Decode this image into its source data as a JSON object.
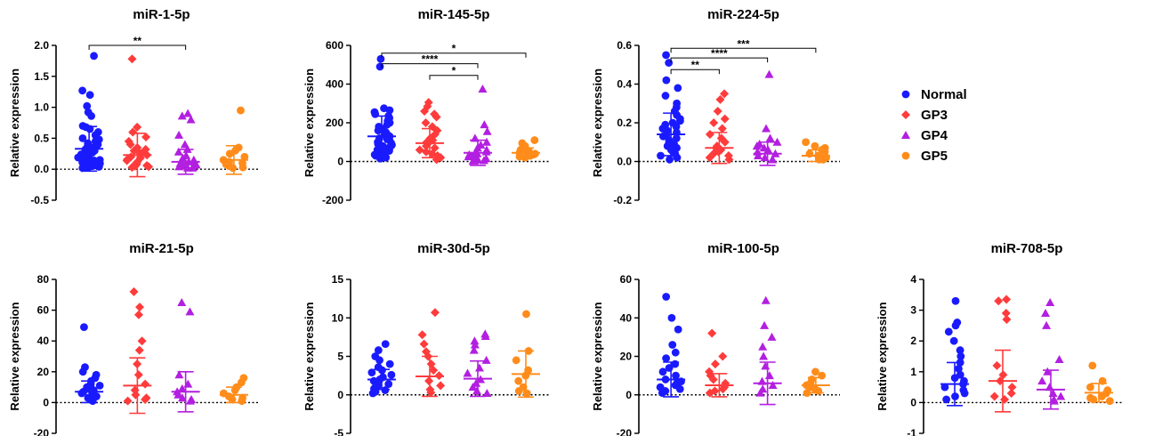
{
  "legend": [
    {
      "label": "Normal",
      "color": "#1a1aff",
      "marker": "circle"
    },
    {
      "label": "GP3",
      "color": "#ff3b3b",
      "marker": "diamond"
    },
    {
      "label": "GP4",
      "color": "#b31fe0",
      "marker": "triangle"
    },
    {
      "label": "GP5",
      "color": "#ff8c1a",
      "marker": "circle"
    }
  ],
  "chart_data": [
    {
      "type": "scatter",
      "title": "miR-1-5p",
      "ylabel": "Relative expression",
      "ylim": [
        -0.5,
        2.0
      ],
      "yticks": [
        "-0.5",
        "0.0",
        "0.5",
        "1.0",
        "1.5",
        "2.0"
      ],
      "reference_line": 0,
      "groups": [
        {
          "name": "Normal",
          "mean": 0.33,
          "sd": 0.36,
          "values": [
            1.83,
            1.27,
            1.2,
            1.02,
            0.92,
            0.86,
            0.7,
            0.68,
            0.65,
            0.6,
            0.55,
            0.5,
            0.48,
            0.45,
            0.42,
            0.4,
            0.38,
            0.35,
            0.32,
            0.3,
            0.28,
            0.27,
            0.25,
            0.24,
            0.22,
            0.2,
            0.19,
            0.18,
            0.16,
            0.15,
            0.14,
            0.13,
            0.12,
            0.11,
            0.1,
            0.09,
            0.08,
            0.07,
            0.06,
            0.05,
            0.04,
            0.03,
            0.02
          ]
        },
        {
          "name": "GP3",
          "mean": 0.23,
          "sd": 0.35,
          "values": [
            1.78,
            0.68,
            0.6,
            0.52,
            0.45,
            0.4,
            0.35,
            0.32,
            0.3,
            0.28,
            0.25,
            0.23,
            0.2,
            0.18,
            0.16,
            0.14,
            0.12,
            0.1,
            0.08,
            0.06,
            0.05,
            0.04,
            0.03
          ]
        },
        {
          "name": "GP4",
          "mean": 0.12,
          "sd": 0.2,
          "values": [
            0.9,
            0.86,
            0.8,
            0.55,
            0.4,
            0.32,
            0.28,
            0.22,
            0.18,
            0.15,
            0.12,
            0.1,
            0.08,
            0.07,
            0.06,
            0.05,
            0.04,
            0.03,
            0.02,
            0.02
          ]
        },
        {
          "name": "GP5",
          "mean": 0.15,
          "sd": 0.23,
          "values": [
            0.95,
            0.35,
            0.3,
            0.25,
            0.2,
            0.15,
            0.12,
            0.1,
            0.08,
            0.05,
            0.03,
            0.02
          ]
        }
      ],
      "significance": [
        {
          "from": 0,
          "to": 2,
          "y": 2.0,
          "label": "**"
        }
      ]
    },
    {
      "type": "scatter",
      "title": "miR-145-5p",
      "ylabel": "Relative expression",
      "ylim": [
        -200,
        600
      ],
      "yticks": [
        "-200",
        "0",
        "200",
        "400",
        "600"
      ],
      "reference_line": 0,
      "groups": [
        {
          "name": "Normal",
          "mean": 130,
          "sd": 105,
          "values": [
            530,
            490,
            275,
            265,
            255,
            245,
            235,
            225,
            210,
            200,
            190,
            180,
            170,
            160,
            150,
            145,
            140,
            135,
            130,
            120,
            115,
            110,
            100,
            95,
            90,
            85,
            80,
            75,
            70,
            65,
            60,
            55,
            50,
            45,
            40,
            35,
            30,
            25,
            20,
            15
          ]
        },
        {
          "name": "GP3",
          "mean": 95,
          "sd": 75,
          "values": [
            305,
            285,
            260,
            245,
            230,
            200,
            180,
            160,
            140,
            120,
            110,
            100,
            90,
            80,
            70,
            60,
            50,
            40,
            30,
            20,
            10
          ]
        },
        {
          "name": "GP4",
          "mean": 45,
          "sd": 65,
          "values": [
            375,
            190,
            155,
            120,
            100,
            85,
            70,
            60,
            50,
            45,
            40,
            35,
            30,
            25,
            20,
            15,
            10,
            8,
            5,
            3
          ]
        },
        {
          "name": "GP5",
          "mean": 45,
          "sd": 25,
          "values": [
            110,
            95,
            80,
            70,
            60,
            55,
            50,
            45,
            40,
            35,
            30,
            25,
            20
          ]
        }
      ],
      "significance": [
        {
          "from": 0,
          "to": 3,
          "y": 560,
          "label": "*"
        },
        {
          "from": 0,
          "to": 2,
          "y": 505,
          "label": "****"
        },
        {
          "from": 1,
          "to": 2,
          "y": 445,
          "label": "*"
        }
      ]
    },
    {
      "type": "scatter",
      "title": "miR-224-5p",
      "ylabel": "Relative expression",
      "ylim": [
        -0.2,
        0.6
      ],
      "yticks": [
        "-0.2",
        "0.0",
        "0.2",
        "0.4",
        "0.6"
      ],
      "reference_line": 0,
      "groups": [
        {
          "name": "Normal",
          "mean": 0.14,
          "sd": 0.11,
          "values": [
            0.55,
            0.51,
            0.42,
            0.38,
            0.34,
            0.3,
            0.28,
            0.26,
            0.24,
            0.22,
            0.21,
            0.2,
            0.19,
            0.18,
            0.17,
            0.16,
            0.15,
            0.14,
            0.13,
            0.12,
            0.11,
            0.1,
            0.09,
            0.08,
            0.07,
            0.06,
            0.05,
            0.04,
            0.03,
            0.02,
            0.01
          ]
        },
        {
          "name": "GP3",
          "mean": 0.07,
          "sd": 0.08,
          "values": [
            0.35,
            0.32,
            0.26,
            0.22,
            0.2,
            0.17,
            0.14,
            0.12,
            0.1,
            0.08,
            0.07,
            0.06,
            0.05,
            0.04,
            0.03,
            0.02,
            0.01
          ]
        },
        {
          "name": "GP4",
          "mean": 0.04,
          "sd": 0.06,
          "values": [
            0.45,
            0.17,
            0.12,
            0.1,
            0.09,
            0.08,
            0.07,
            0.06,
            0.05,
            0.04,
            0.03,
            0.02,
            0.01,
            0.01
          ]
        },
        {
          "name": "GP5",
          "mean": 0.03,
          "sd": 0.03,
          "values": [
            0.1,
            0.08,
            0.07,
            0.06,
            0.05,
            0.04,
            0.03,
            0.02,
            0.01,
            0.01
          ]
        }
      ],
      "significance": [
        {
          "from": 0,
          "to": 3,
          "y": 0.585,
          "label": "***"
        },
        {
          "from": 0,
          "to": 2,
          "y": 0.535,
          "label": "****"
        },
        {
          "from": 0,
          "to": 1,
          "y": 0.475,
          "label": "**"
        }
      ]
    },
    {
      "type": "scatter",
      "title": "miR-21-5p",
      "ylabel": "Relative expression",
      "ylim": [
        -20,
        80
      ],
      "yticks": [
        "-20",
        "0",
        "20",
        "40",
        "60",
        "80"
      ],
      "reference_line": 0,
      "groups": [
        {
          "name": "Normal",
          "mean": 7,
          "sd": 7,
          "values": [
            49,
            23,
            20,
            18,
            16,
            14,
            12,
            11,
            10,
            9,
            8,
            7,
            6,
            5,
            4,
            3,
            2,
            1
          ]
        },
        {
          "name": "GP3",
          "mean": 11,
          "sd": 18,
          "values": [
            72,
            62,
            57,
            40,
            34,
            25,
            18,
            12,
            8,
            5,
            3,
            2,
            1
          ]
        },
        {
          "name": "GP4",
          "mean": 7,
          "sd": 13,
          "values": [
            65,
            59,
            18,
            12,
            9,
            7,
            5,
            3,
            2,
            1
          ]
        },
        {
          "name": "GP5",
          "mean": 5,
          "sd": 5,
          "values": [
            16,
            13,
            10,
            8,
            6,
            4,
            3,
            2,
            1
          ]
        }
      ],
      "significance": []
    },
    {
      "type": "scatter",
      "title": "miR-30d-5p",
      "ylabel": "Relative expression",
      "ylim": [
        -5,
        15
      ],
      "yticks": [
        "-5",
        "0",
        "5",
        "10",
        "15"
      ],
      "reference_line": 0,
      "groups": [
        {
          "name": "Normal",
          "mean": 2.0,
          "sd": 1.3,
          "values": [
            6.6,
            5.8,
            5.0,
            4.5,
            4.0,
            3.6,
            3.2,
            2.9,
            2.6,
            2.3,
            2.0,
            1.8,
            1.6,
            1.4,
            1.2,
            1.0,
            0.8,
            0.6,
            0.4,
            0.2
          ]
        },
        {
          "name": "GP3",
          "mean": 2.4,
          "sd": 2.6,
          "values": [
            10.7,
            7.8,
            6.6,
            5.6,
            5.0,
            4.0,
            3.2,
            2.5,
            1.8,
            1.2,
            0.7,
            0.3
          ]
        },
        {
          "name": "GP4",
          "mean": 2.1,
          "sd": 2.3,
          "values": [
            7.9,
            7.6,
            7.0,
            6.5,
            5.8,
            4.5,
            3.5,
            2.8,
            2.0,
            1.5,
            1.0,
            0.5,
            0.2
          ]
        },
        {
          "name": "GP5",
          "mean": 2.7,
          "sd": 3.0,
          "values": [
            10.5,
            5.7,
            4.5,
            3.2,
            2.5,
            1.8,
            1.0,
            0.5,
            0.2
          ]
        }
      ],
      "significance": []
    },
    {
      "type": "scatter",
      "title": "miR-100-5p",
      "ylabel": "Relative expression",
      "ylim": [
        -20,
        60
      ],
      "yticks": [
        "-20",
        "0",
        "20",
        "40",
        "60"
      ],
      "reference_line": 0,
      "groups": [
        {
          "name": "Normal",
          "mean": 8,
          "sd": 9,
          "values": [
            51,
            40,
            34,
            26,
            22,
            19,
            16,
            14,
            12,
            10,
            8,
            7,
            6,
            5,
            4,
            3,
            2,
            1
          ]
        },
        {
          "name": "GP3",
          "mean": 5,
          "sd": 6,
          "values": [
            32,
            20,
            16,
            12,
            10,
            8,
            6,
            4,
            3,
            2,
            1
          ]
        },
        {
          "name": "GP4",
          "mean": 6,
          "sd": 11,
          "values": [
            49,
            36,
            30,
            25,
            20,
            15,
            10,
            7,
            5,
            3,
            1
          ]
        },
        {
          "name": "GP5",
          "mean": 5,
          "sd": 4,
          "values": [
            12,
            10,
            8,
            6,
            5,
            4,
            3,
            2,
            1
          ]
        }
      ],
      "significance": []
    },
    {
      "type": "scatter",
      "title": "miR-708-5p",
      "ylabel": "Relative expression",
      "ylim": [
        -1,
        4
      ],
      "yticks": [
        "-1",
        "0",
        "1",
        "2",
        "3",
        "4"
      ],
      "reference_line": 0,
      "groups": [
        {
          "name": "Normal",
          "mean": 0.6,
          "sd": 0.7,
          "values": [
            3.3,
            2.6,
            2.5,
            2.3,
            2.0,
            1.7,
            1.5,
            1.3,
            1.1,
            0.9,
            0.8,
            0.7,
            0.6,
            0.5,
            0.4,
            0.3,
            0.2,
            0.1
          ]
        },
        {
          "name": "GP3",
          "mean": 0.7,
          "sd": 1.0,
          "values": [
            3.35,
            3.3,
            2.9,
            2.7,
            1.2,
            0.9,
            0.7,
            0.5,
            0.3,
            0.2,
            0.1
          ]
        },
        {
          "name": "GP4",
          "mean": 0.42,
          "sd": 0.63,
          "values": [
            3.25,
            2.9,
            2.5,
            1.4,
            1.0,
            0.7,
            0.5,
            0.3,
            0.2,
            0.1,
            0.05
          ]
        },
        {
          "name": "GP5",
          "mean": 0.32,
          "sd": 0.3,
          "values": [
            1.2,
            0.7,
            0.5,
            0.4,
            0.3,
            0.2,
            0.15,
            0.1,
            0.05
          ]
        }
      ],
      "significance": []
    }
  ]
}
